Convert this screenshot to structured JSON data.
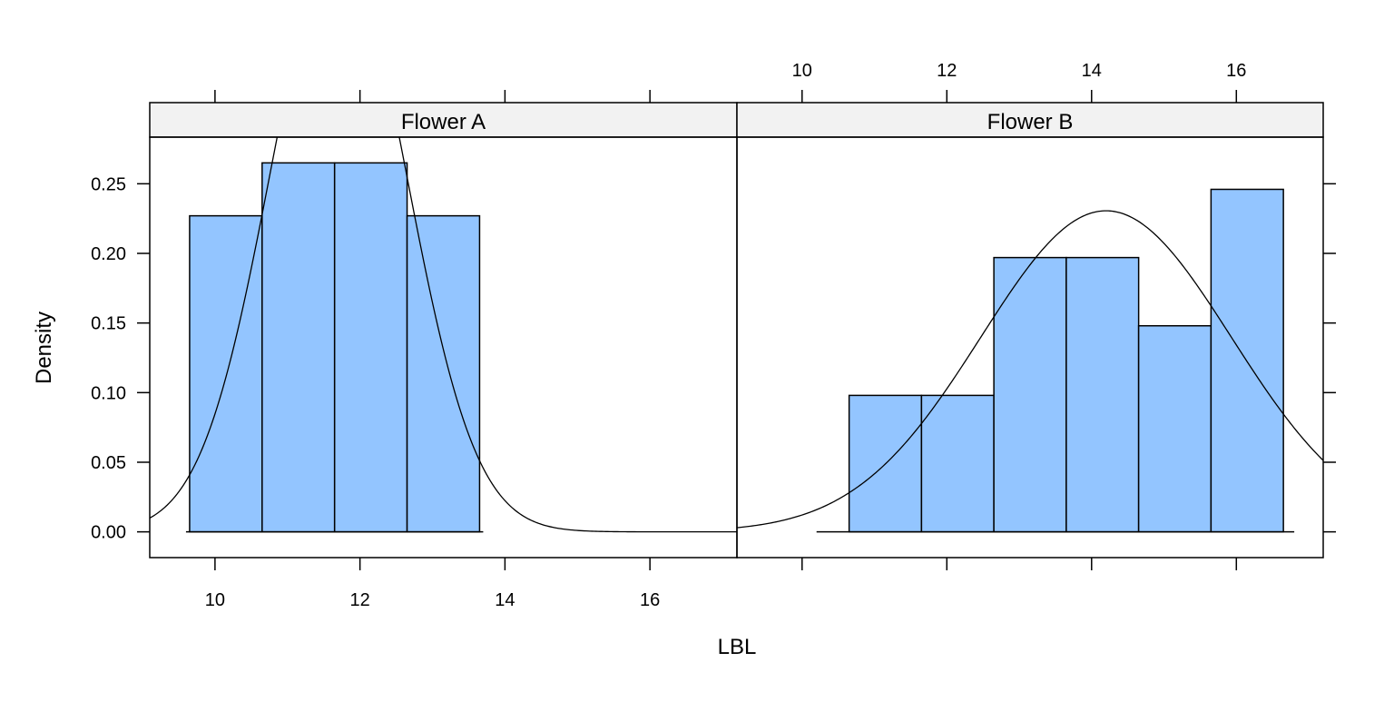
{
  "chart_data": {
    "type": "bar",
    "xlabel": "LBL",
    "ylabel": "Density",
    "xlim": [
      9.1,
      17.2
    ],
    "ylim": [
      -0.0185,
      0.2835
    ],
    "x_ticks": [
      10,
      12,
      14,
      16
    ],
    "y_ticks": [
      0.0,
      0.05,
      0.1,
      0.15,
      0.2,
      0.25
    ],
    "y_tick_labels": [
      "0.00",
      "0.05",
      "0.10",
      "0.15",
      "0.20",
      "0.25"
    ],
    "bar_color": "#93c5ff",
    "strip_color": "#f2f2f2",
    "panels": [
      {
        "name": "Flower A",
        "bins": [
          {
            "from": 9.65,
            "to": 10.65,
            "density": 0.227
          },
          {
            "from": 10.65,
            "to": 11.65,
            "density": 0.265
          },
          {
            "from": 11.65,
            "to": 12.65,
            "density": 0.265
          },
          {
            "from": 12.65,
            "to": 13.65,
            "density": 0.227
          }
        ],
        "density_curve": {
          "mean": 11.7,
          "sd": 0.95
        },
        "data_range": [
          9.6,
          13.7
        ]
      },
      {
        "name": "Flower B",
        "bins": [
          {
            "from": 10.65,
            "to": 11.65,
            "density": 0.098
          },
          {
            "from": 11.65,
            "to": 12.65,
            "density": 0.098
          },
          {
            "from": 12.65,
            "to": 13.65,
            "density": 0.197
          },
          {
            "from": 13.65,
            "to": 14.65,
            "density": 0.197
          },
          {
            "from": 14.65,
            "to": 15.65,
            "density": 0.148
          },
          {
            "from": 15.65,
            "to": 16.65,
            "density": 0.246
          }
        ],
        "density_curve": {
          "mean": 14.2,
          "sd": 1.73
        },
        "data_range": [
          10.2,
          16.8
        ]
      }
    ]
  }
}
